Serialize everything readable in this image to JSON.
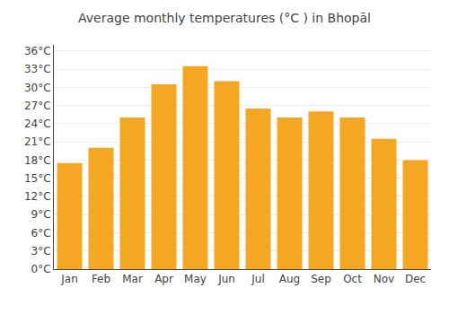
{
  "chart_data": {
    "type": "bar",
    "title": "Average monthly temperatures (°C ) in Bhopāl",
    "categories": [
      "Jan",
      "Feb",
      "Mar",
      "Apr",
      "May",
      "Jun",
      "Jul",
      "Aug",
      "Sep",
      "Oct",
      "Nov",
      "Dec"
    ],
    "values": [
      17.5,
      20.0,
      25.0,
      30.5,
      33.5,
      31.0,
      26.5,
      25.0,
      26.0,
      25.0,
      21.5,
      18.0
    ],
    "color": "#F5A623",
    "ylim": [
      0,
      37
    ],
    "yticks": [
      {
        "value": 0,
        "label": "0°C"
      },
      {
        "value": 3,
        "label": "3°C"
      },
      {
        "value": 6,
        "label": "6°C"
      },
      {
        "value": 9,
        "label": "9°C"
      },
      {
        "value": 12,
        "label": "12°C"
      },
      {
        "value": 15,
        "label": "15°C"
      },
      {
        "value": 18,
        "label": "18°C"
      },
      {
        "value": 21,
        "label": "21°C"
      },
      {
        "value": 24,
        "label": "24°C"
      },
      {
        "value": 27,
        "label": "27°C"
      },
      {
        "value": 30,
        "label": "30°C"
      },
      {
        "value": 33,
        "label": "33°C"
      },
      {
        "value": 36,
        "label": "36°C"
      }
    ],
    "grid": true
  }
}
